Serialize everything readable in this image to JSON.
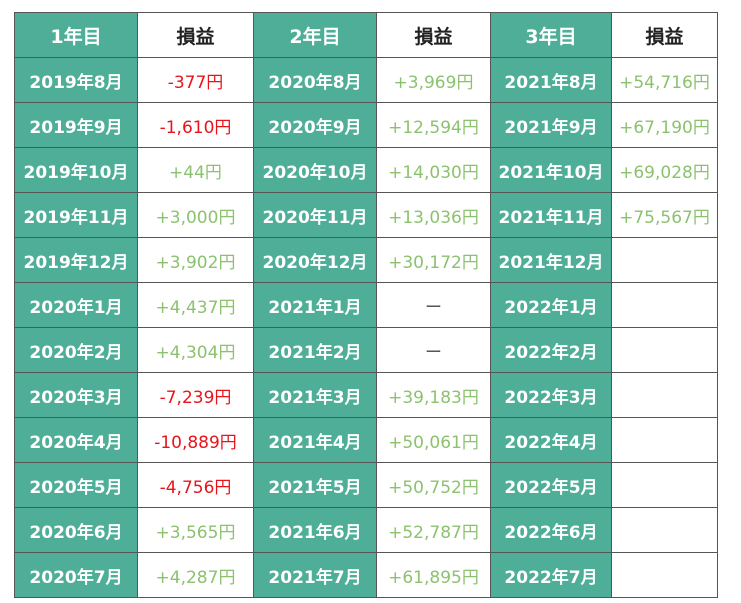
{
  "headers": [
    "1年目",
    "損益",
    "2年目",
    "損益",
    "3年目",
    "損益"
  ],
  "colors": {
    "header_green": "#4eae97",
    "positive": "#8cc26f",
    "negative": "#e8141b"
  },
  "rows": [
    [
      {
        "month": "2019年8月",
        "pnl": "-377円",
        "s": "neg"
      },
      {
        "month": "2020年8月",
        "pnl": "+3,969円",
        "s": "pos"
      },
      {
        "month": "2021年8月",
        "pnl": "+54,716円",
        "s": "pos"
      }
    ],
    [
      {
        "month": "2019年9月",
        "pnl": "-1,610円",
        "s": "neg"
      },
      {
        "month": "2020年9月",
        "pnl": "+12,594円",
        "s": "pos"
      },
      {
        "month": "2021年9月",
        "pnl": "+67,190円",
        "s": "pos"
      }
    ],
    [
      {
        "month": "2019年10月",
        "pnl": "+44円",
        "s": "pos"
      },
      {
        "month": "2020年10月",
        "pnl": "+14,030円",
        "s": "pos"
      },
      {
        "month": "2021年10月",
        "pnl": "+69,028円",
        "s": "pos"
      }
    ],
    [
      {
        "month": "2019年11月",
        "pnl": "+3,000円",
        "s": "pos"
      },
      {
        "month": "2020年11月",
        "pnl": "+13,036円",
        "s": "pos"
      },
      {
        "month": "2021年11月",
        "pnl": "+75,567円",
        "s": "pos"
      }
    ],
    [
      {
        "month": "2019年12月",
        "pnl": "+3,902円",
        "s": "pos"
      },
      {
        "month": "2020年12月",
        "pnl": "+30,172円",
        "s": "pos"
      },
      {
        "month": "2021年12月",
        "pnl": "",
        "s": ""
      }
    ],
    [
      {
        "month": "2020年1月",
        "pnl": "+4,437円",
        "s": "pos"
      },
      {
        "month": "2021年1月",
        "pnl": "ー",
        "s": "dash"
      },
      {
        "month": "2022年1月",
        "pnl": "",
        "s": ""
      }
    ],
    [
      {
        "month": "2020年2月",
        "pnl": "+4,304円",
        "s": "pos"
      },
      {
        "month": "2021年2月",
        "pnl": "ー",
        "s": "dash"
      },
      {
        "month": "2022年2月",
        "pnl": "",
        "s": ""
      }
    ],
    [
      {
        "month": "2020年3月",
        "pnl": "-7,239円",
        "s": "neg"
      },
      {
        "month": "2021年3月",
        "pnl": "+39,183円",
        "s": "pos"
      },
      {
        "month": "2022年3月",
        "pnl": "",
        "s": ""
      }
    ],
    [
      {
        "month": "2020年4月",
        "pnl": "-10,889円",
        "s": "neg"
      },
      {
        "month": "2021年4月",
        "pnl": "+50,061円",
        "s": "pos"
      },
      {
        "month": "2022年4月",
        "pnl": "",
        "s": ""
      }
    ],
    [
      {
        "month": "2020年5月",
        "pnl": "-4,756円",
        "s": "neg"
      },
      {
        "month": "2021年5月",
        "pnl": "+50,752円",
        "s": "pos"
      },
      {
        "month": "2022年5月",
        "pnl": "",
        "s": ""
      }
    ],
    [
      {
        "month": "2020年6月",
        "pnl": "+3,565円",
        "s": "pos"
      },
      {
        "month": "2021年6月",
        "pnl": "+52,787円",
        "s": "pos"
      },
      {
        "month": "2022年6月",
        "pnl": "",
        "s": ""
      }
    ],
    [
      {
        "month": "2020年7月",
        "pnl": "+4,287円",
        "s": "pos"
      },
      {
        "month": "2021年7月",
        "pnl": "+61,895円",
        "s": "pos"
      },
      {
        "month": "2022年7月",
        "pnl": "",
        "s": ""
      }
    ]
  ]
}
